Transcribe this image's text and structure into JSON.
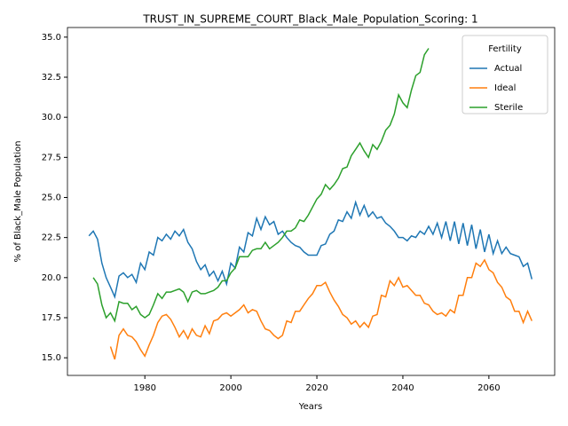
{
  "chart_data": {
    "type": "line",
    "title": "TRUST_IN_SUPREME_COURT_Black_Male_Population_Scoring: 1",
    "xlabel": "Years",
    "ylabel": "% of Black_Male Population",
    "legend_title": "Fertility",
    "legend_loc": "upper right",
    "grid": false,
    "xlim": [
      1962,
      2075.3
    ],
    "ylim": [
      13.9,
      35.6
    ],
    "xticks": [
      1980,
      2000,
      2020,
      2040,
      2060
    ],
    "yticks": [
      {
        "value": 15,
        "label": "15.0"
      },
      17.5,
      {
        "value": 20,
        "label": "20.0"
      },
      22.5,
      {
        "value": 25,
        "label": "25.0"
      },
      27.5,
      {
        "value": 30,
        "label": "30.0"
      },
      32.5,
      {
        "value": 35,
        "label": "35.0"
      }
    ],
    "x": [
      1967,
      1968,
      1969,
      1970,
      1971,
      1972,
      1973,
      1974,
      1975,
      1976,
      1977,
      1978,
      1979,
      1980,
      1981,
      1982,
      1983,
      1984,
      1985,
      1986,
      1987,
      1988,
      1989,
      1990,
      1991,
      1992,
      1993,
      1994,
      1995,
      1996,
      1997,
      1998,
      1999,
      2000,
      2001,
      2002,
      2003,
      2004,
      2005,
      2006,
      2007,
      2008,
      2009,
      2010,
      2011,
      2012,
      2013,
      2014,
      2015,
      2016,
      2017,
      2018,
      2019,
      2020,
      2021,
      2022,
      2023,
      2024,
      2025,
      2026,
      2027,
      2028,
      2029,
      2030,
      2031,
      2032,
      2033,
      2034,
      2035,
      2036,
      2037,
      2038,
      2039,
      2040,
      2041,
      2042,
      2043,
      2044,
      2045,
      2046,
      2047,
      2048,
      2049,
      2050,
      2051,
      2052,
      2053,
      2054,
      2055,
      2056,
      2057,
      2058,
      2059,
      2060,
      2061,
      2062,
      2063,
      2064,
      2065,
      2066,
      2067,
      2068,
      2069,
      2070
    ],
    "series": [
      {
        "name": "Actual",
        "color": "#1f77b4",
        "values": [
          22.6,
          22.9,
          22.4,
          20.9,
          20.0,
          19.4,
          18.8,
          20.1,
          20.3,
          20.0,
          20.2,
          19.7,
          20.9,
          20.5,
          21.6,
          21.4,
          22.5,
          22.3,
          22.7,
          22.4,
          22.9,
          22.6,
          23.0,
          22.2,
          21.8,
          21.0,
          20.5,
          20.8,
          20.1,
          20.4,
          19.8,
          20.4,
          19.6,
          20.9,
          20.6,
          21.9,
          21.6,
          22.8,
          22.6,
          23.7,
          23.0,
          23.8,
          23.3,
          23.5,
          22.7,
          22.9,
          22.5,
          22.2,
          22.0,
          21.9,
          21.6,
          21.4,
          21.4,
          21.4,
          22.0,
          22.1,
          22.7,
          22.9,
          23.6,
          23.5,
          24.1,
          23.7,
          24.7,
          23.9,
          24.5,
          23.8,
          24.1,
          23.7,
          23.8,
          23.4,
          23.2,
          22.9,
          22.5,
          22.5,
          22.3,
          22.6,
          22.5,
          22.9,
          22.7,
          23.2,
          22.7,
          23.4,
          22.5,
          23.5,
          22.3,
          23.5,
          22.1,
          23.4,
          22.0,
          23.3,
          21.8,
          23.0,
          21.6,
          22.7,
          21.5,
          22.3,
          21.5,
          21.9,
          21.5,
          21.4,
          21.3,
          20.7,
          20.9,
          19.9
        ]
      },
      {
        "name": "Ideal",
        "color": "#ff7f0e",
        "values": [
          null,
          null,
          null,
          null,
          null,
          15.7,
          14.9,
          16.4,
          16.8,
          16.4,
          16.3,
          16.0,
          15.5,
          15.1,
          15.8,
          16.4,
          17.2,
          17.6,
          17.7,
          17.4,
          16.9,
          16.3,
          16.7,
          16.2,
          16.8,
          16.4,
          16.3,
          17.0,
          16.5,
          17.3,
          17.4,
          17.7,
          17.8,
          17.6,
          17.8,
          18.0,
          18.3,
          17.8,
          18.0,
          17.9,
          17.3,
          16.8,
          16.7,
          16.4,
          16.2,
          16.4,
          17.3,
          17.2,
          17.9,
          17.9,
          18.3,
          18.7,
          19.0,
          19.5,
          19.5,
          19.7,
          19.1,
          18.6,
          18.2,
          17.7,
          17.5,
          17.1,
          17.3,
          16.9,
          17.2,
          16.9,
          17.6,
          17.7,
          18.9,
          18.8,
          19.8,
          19.5,
          20.0,
          19.4,
          19.5,
          19.2,
          18.9,
          18.9,
          18.4,
          18.3,
          17.9,
          17.7,
          17.8,
          17.6,
          18.0,
          17.8,
          18.9,
          18.9,
          20.0,
          20.0,
          20.9,
          20.7,
          21.1,
          20.5,
          20.3,
          19.7,
          19.4,
          18.8,
          18.6,
          17.9,
          17.9,
          17.2,
          17.9,
          17.3
        ]
      },
      {
        "name": "Sterile",
        "color": "#2ca02c",
        "values": [
          null,
          20.0,
          19.6,
          18.3,
          17.5,
          17.8,
          17.3,
          18.5,
          18.4,
          18.4,
          18.0,
          18.2,
          17.7,
          17.5,
          17.7,
          18.3,
          19.0,
          18.7,
          19.1,
          19.1,
          19.2,
          19.3,
          19.1,
          18.5,
          19.1,
          19.2,
          19.0,
          19.0,
          19.1,
          19.2,
          19.4,
          19.8,
          19.8,
          20.3,
          20.6,
          21.3,
          21.3,
          21.3,
          21.7,
          21.8,
          21.8,
          22.2,
          21.8,
          22.0,
          22.2,
          22.5,
          22.9,
          22.9,
          23.1,
          23.6,
          23.5,
          23.9,
          24.4,
          24.9,
          25.2,
          25.8,
          25.5,
          25.8,
          26.2,
          26.8,
          26.9,
          27.6,
          28.0,
          28.4,
          27.9,
          27.5,
          28.3,
          28.0,
          28.5,
          29.2,
          29.5,
          30.2,
          31.4,
          30.9,
          30.6,
          31.7,
          32.6,
          32.8,
          33.9,
          34.3,
          null,
          null,
          null,
          null,
          null,
          null,
          null,
          null,
          null,
          null,
          null,
          null,
          null,
          null,
          null,
          null,
          null,
          null,
          null,
          null,
          null,
          null,
          null,
          null
        ]
      }
    ]
  }
}
